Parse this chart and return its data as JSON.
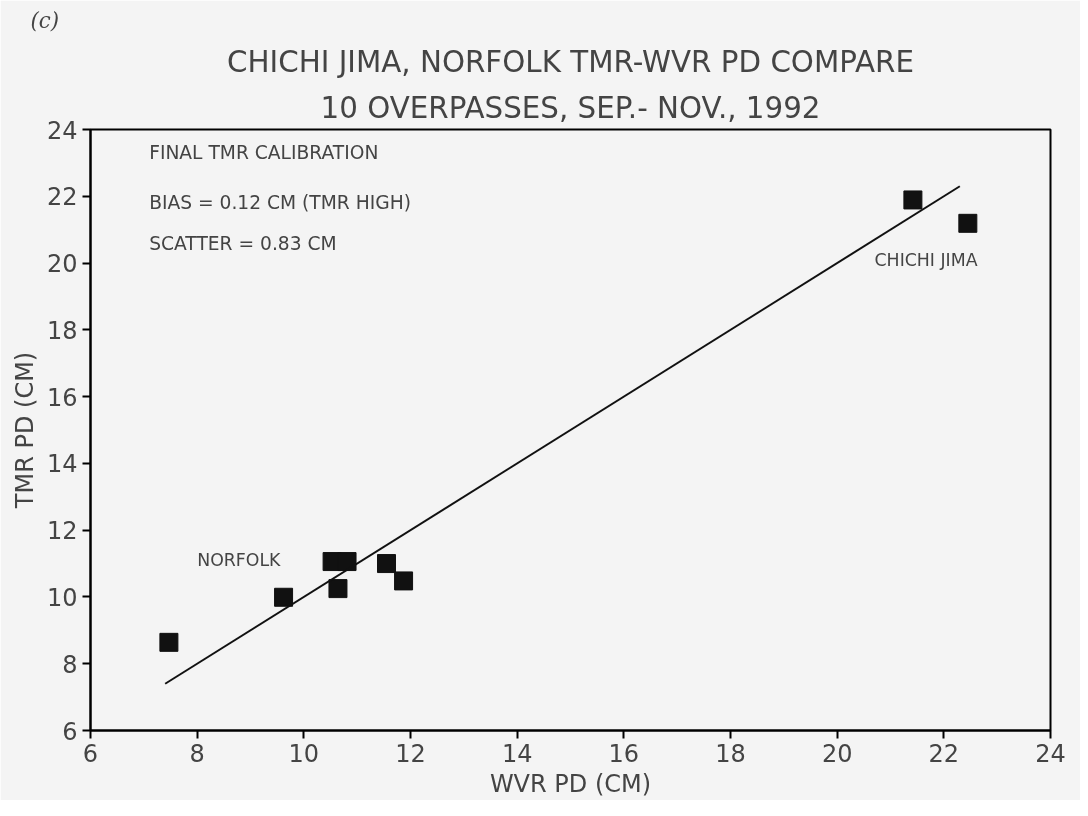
{
  "chart_data": {
    "type": "scatter",
    "title": "CHICHI JIMA, NORFOLK TMR-WVR PD COMPARE",
    "subtitle": "10 OVERPASSES, SEP.- NOV., 1992",
    "xlabel": "WVR PD (CM)",
    "ylabel": "TMR PD (CM)",
    "xlim": [
      6,
      24
    ],
    "ylim": [
      6,
      24
    ],
    "xticks": [
      6,
      8,
      10,
      12,
      14,
      16,
      18,
      20,
      22,
      24
    ],
    "yticks": [
      6,
      8,
      10,
      12,
      14,
      16,
      18,
      20,
      22,
      24
    ],
    "grid": false,
    "marker": "square",
    "series": [
      {
        "color": "#111111",
        "x": [
          7.47,
          9.62,
          10.53,
          10.81,
          10.64,
          11.55,
          11.87,
          21.42,
          22.45
        ],
        "values": [
          8.64,
          9.99,
          11.06,
          11.06,
          10.25,
          11.0,
          10.48,
          21.89,
          21.19
        ]
      },
      {
        "type": "line",
        "color": "#111111",
        "marker": "none",
        "line_style": "solid",
        "x": [
          7.4,
          22.3
        ],
        "values": [
          7.4,
          22.3
        ]
      }
    ],
    "annotations": [
      "(c)",
      "FINAL TMR CALIBRATION",
      "BIAS = 0.12 CM (TMR HIGH)",
      "SCATTER = 0.83 CM",
      "NORFOLK",
      "CHICHI JIMA"
    ]
  }
}
